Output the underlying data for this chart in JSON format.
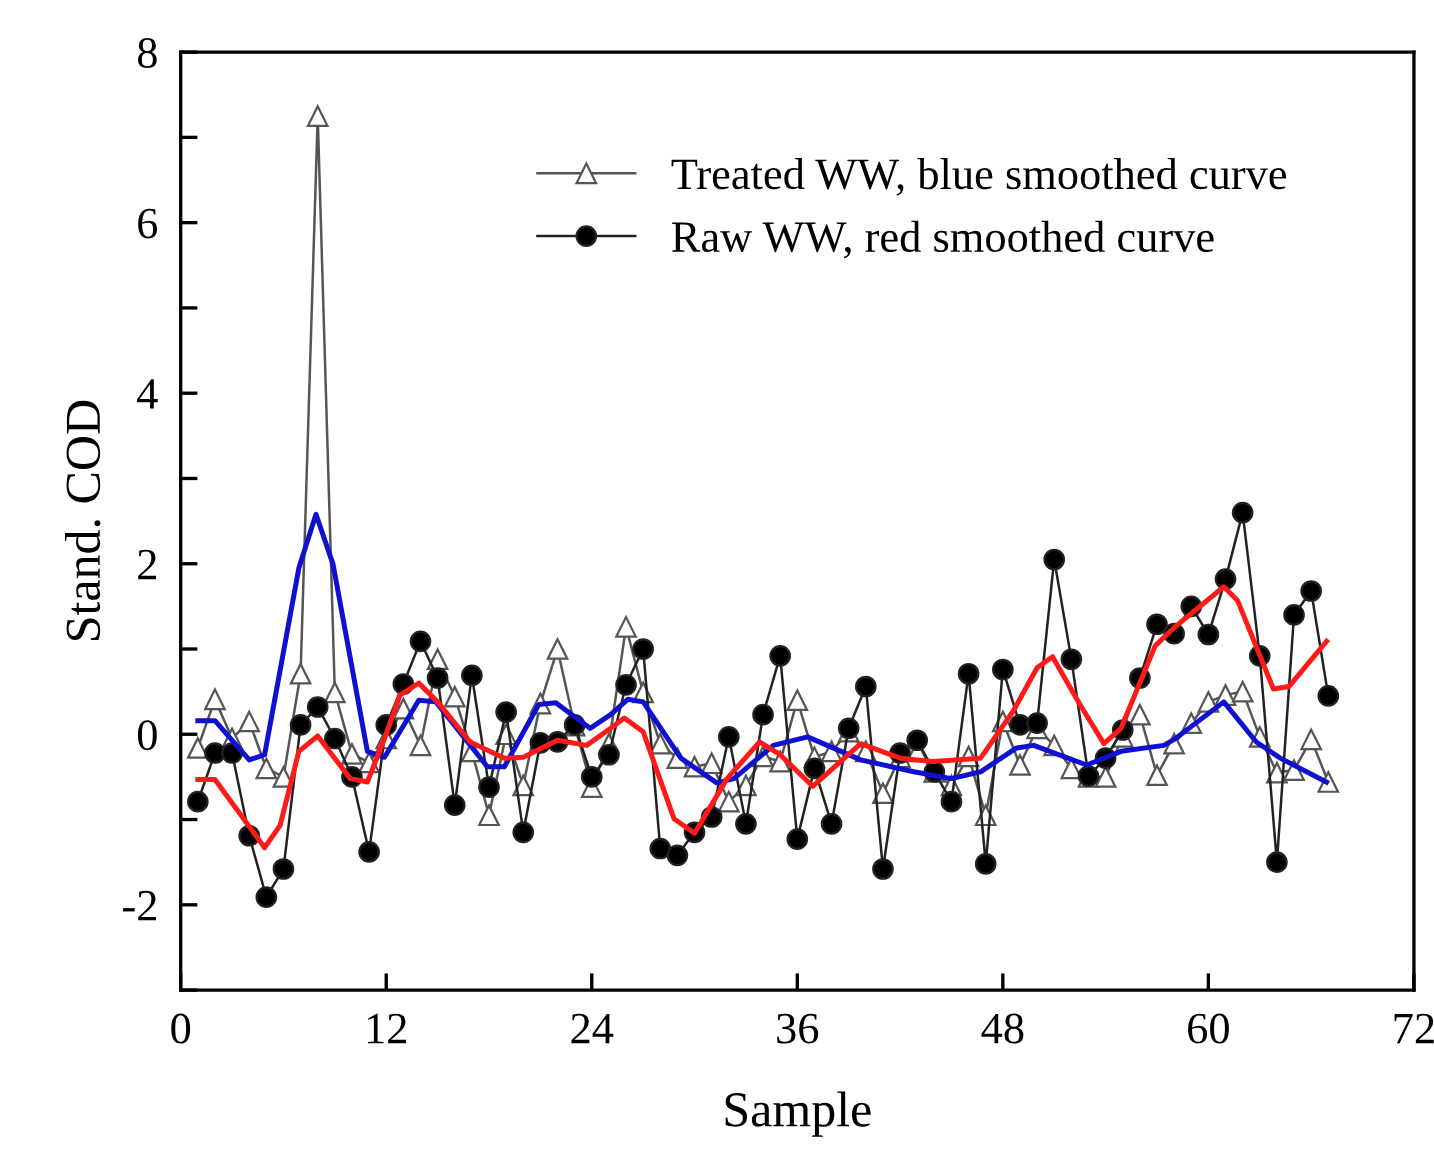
{
  "chart_data": {
    "type": "line",
    "xlabel": "Sample",
    "ylabel": "Stand. COD",
    "x": [
      1,
      2,
      3,
      4,
      5,
      6,
      7,
      8,
      9,
      10,
      11,
      12,
      13,
      14,
      15,
      16,
      17,
      18,
      19,
      20,
      21,
      22,
      23,
      24,
      25,
      26,
      27,
      28,
      29,
      30,
      31,
      32,
      33,
      34,
      35,
      36,
      37,
      38,
      39,
      40,
      41,
      42,
      43,
      44,
      45,
      46,
      47,
      48,
      49,
      50,
      51,
      52,
      53,
      54,
      55,
      56,
      57,
      58,
      59,
      60,
      61,
      62,
      63,
      64,
      65,
      66,
      67
    ],
    "series": [
      {
        "name": "Treated WW, blue smoothed curve",
        "color": "#555555",
        "marker": "triangle",
        "values": [
          -0.16,
          0.41,
          -0.05,
          0.15,
          -0.4,
          -0.5,
          0.71,
          7.25,
          0.49,
          -0.23,
          -0.33,
          -0.05,
          0.3,
          -0.13,
          0.88,
          0.44,
          -0.2,
          -0.95,
          0.0,
          -0.6,
          0.36,
          1.0,
          0.1,
          -0.62,
          -0.11,
          1.26,
          0.49,
          -0.11,
          -0.28,
          -0.38,
          -0.34,
          -0.79,
          -0.6,
          -0.26,
          -0.32,
          0.4,
          -0.27,
          -0.2,
          0.03,
          -0.2,
          -0.69,
          -0.27,
          -0.2,
          -0.44,
          -0.6,
          -0.26,
          -0.95,
          0.15,
          -0.36,
          0.07,
          -0.13,
          -0.4,
          -0.5,
          -0.5,
          -0.03,
          0.23,
          -0.48,
          -0.11,
          0.13,
          0.38,
          0.46,
          0.5,
          -0.03,
          -0.45,
          -0.42,
          -0.06,
          -0.56
        ]
      },
      {
        "name": "Raw WW, red smoothed curve",
        "color": "#222222",
        "marker": "circle",
        "values": [
          -0.79,
          -0.22,
          -0.22,
          -1.19,
          -1.91,
          -1.58,
          0.11,
          0.32,
          -0.05,
          -0.5,
          -1.38,
          0.11,
          0.59,
          1.09,
          0.66,
          -0.83,
          0.69,
          -0.62,
          0.26,
          -1.15,
          -0.1,
          -0.09,
          0.11,
          -0.5,
          -0.24,
          0.58,
          1.0,
          -1.34,
          -1.42,
          -1.15,
          -0.97,
          -0.03,
          -1.05,
          0.23,
          0.92,
          -1.23,
          -0.4,
          -1.05,
          0.07,
          0.56,
          -1.58,
          -0.22,
          -0.07,
          -0.44,
          -0.79,
          0.71,
          -1.52,
          0.76,
          0.11,
          0.13,
          2.05,
          0.88,
          -0.49,
          -0.28,
          0.05,
          0.66,
          1.29,
          1.18,
          1.5,
          1.17,
          1.82,
          2.6,
          0.92,
          -1.5,
          1.4,
          1.68,
          0.45
        ]
      },
      {
        "color": "#1010d0",
        "marker": "none",
        "x": [
          1,
          2,
          4,
          4.9,
          6.9,
          7.9,
          8.9,
          10.9,
          11.9,
          13.9,
          14.9,
          17.9,
          18.9,
          20.9,
          21.9,
          23.9,
          25.1,
          26.1,
          27.0,
          29.2,
          31.3,
          32.3,
          34.6,
          36.6,
          39.7,
          42.8,
          45.0,
          46.7,
          48.8,
          49.8,
          52.9,
          54.9,
          57.4,
          58.0,
          60.9,
          62.8,
          64.2,
          66.9
        ],
        "values": [
          0.16,
          0.16,
          -0.3,
          -0.24,
          1.95,
          2.58,
          1.99,
          -0.2,
          -0.27,
          0.4,
          0.38,
          -0.38,
          -0.38,
          0.35,
          0.37,
          0.07,
          0.23,
          0.41,
          0.38,
          -0.28,
          -0.57,
          -0.52,
          -0.13,
          -0.03,
          -0.3,
          -0.44,
          -0.52,
          -0.44,
          -0.16,
          -0.13,
          -0.36,
          -0.2,
          -0.13,
          -0.06,
          0.38,
          -0.09,
          -0.28,
          -0.56
        ]
      },
      {
        "color": "#ff1a1a",
        "marker": "none",
        "x": [
          1,
          2,
          4.9,
          5.8,
          6.9,
          8,
          9.9,
          10.9,
          11.9,
          12.8,
          13.9,
          15,
          16.9,
          18.9,
          20,
          22,
          23.7,
          25.1,
          25.9,
          27.0,
          28.8,
          30.0,
          31.9,
          33.8,
          35.0,
          36.9,
          39.7,
          42.0,
          43.9,
          46.7,
          48.6,
          50.0,
          50.9,
          52.5,
          53.9,
          54.9,
          56.9,
          58.0,
          60.9,
          61.7,
          63.8,
          64.7,
          66.9
        ],
        "values": [
          -0.53,
          -0.53,
          -1.33,
          -1.07,
          -0.2,
          -0.02,
          -0.52,
          -0.56,
          -0.05,
          0.46,
          0.6,
          0.38,
          -0.09,
          -0.28,
          -0.27,
          -0.07,
          -0.13,
          0.07,
          0.19,
          0.03,
          -0.99,
          -1.16,
          -0.52,
          -0.09,
          -0.24,
          -0.61,
          -0.11,
          -0.28,
          -0.32,
          -0.28,
          0.27,
          0.78,
          0.91,
          0.35,
          -0.11,
          0.07,
          1.04,
          1.25,
          1.73,
          1.57,
          0.53,
          0.56,
          1.09
        ]
      }
    ],
    "xlim": [
      0,
      72
    ],
    "xticks": [
      0,
      12,
      24,
      36,
      48,
      60,
      72
    ],
    "ylim": [
      -3,
      8
    ],
    "yticks": [
      {
        "value": -3,
        "label": null
      },
      -2,
      {
        "value": -1,
        "label": null
      },
      0,
      {
        "value": 1,
        "label": null
      },
      2,
      {
        "value": 3,
        "label": null
      },
      4,
      {
        "value": 5,
        "label": null
      },
      6,
      {
        "value": 7,
        "label": null
      },
      8
    ],
    "legend": "top right",
    "grid": false
  }
}
